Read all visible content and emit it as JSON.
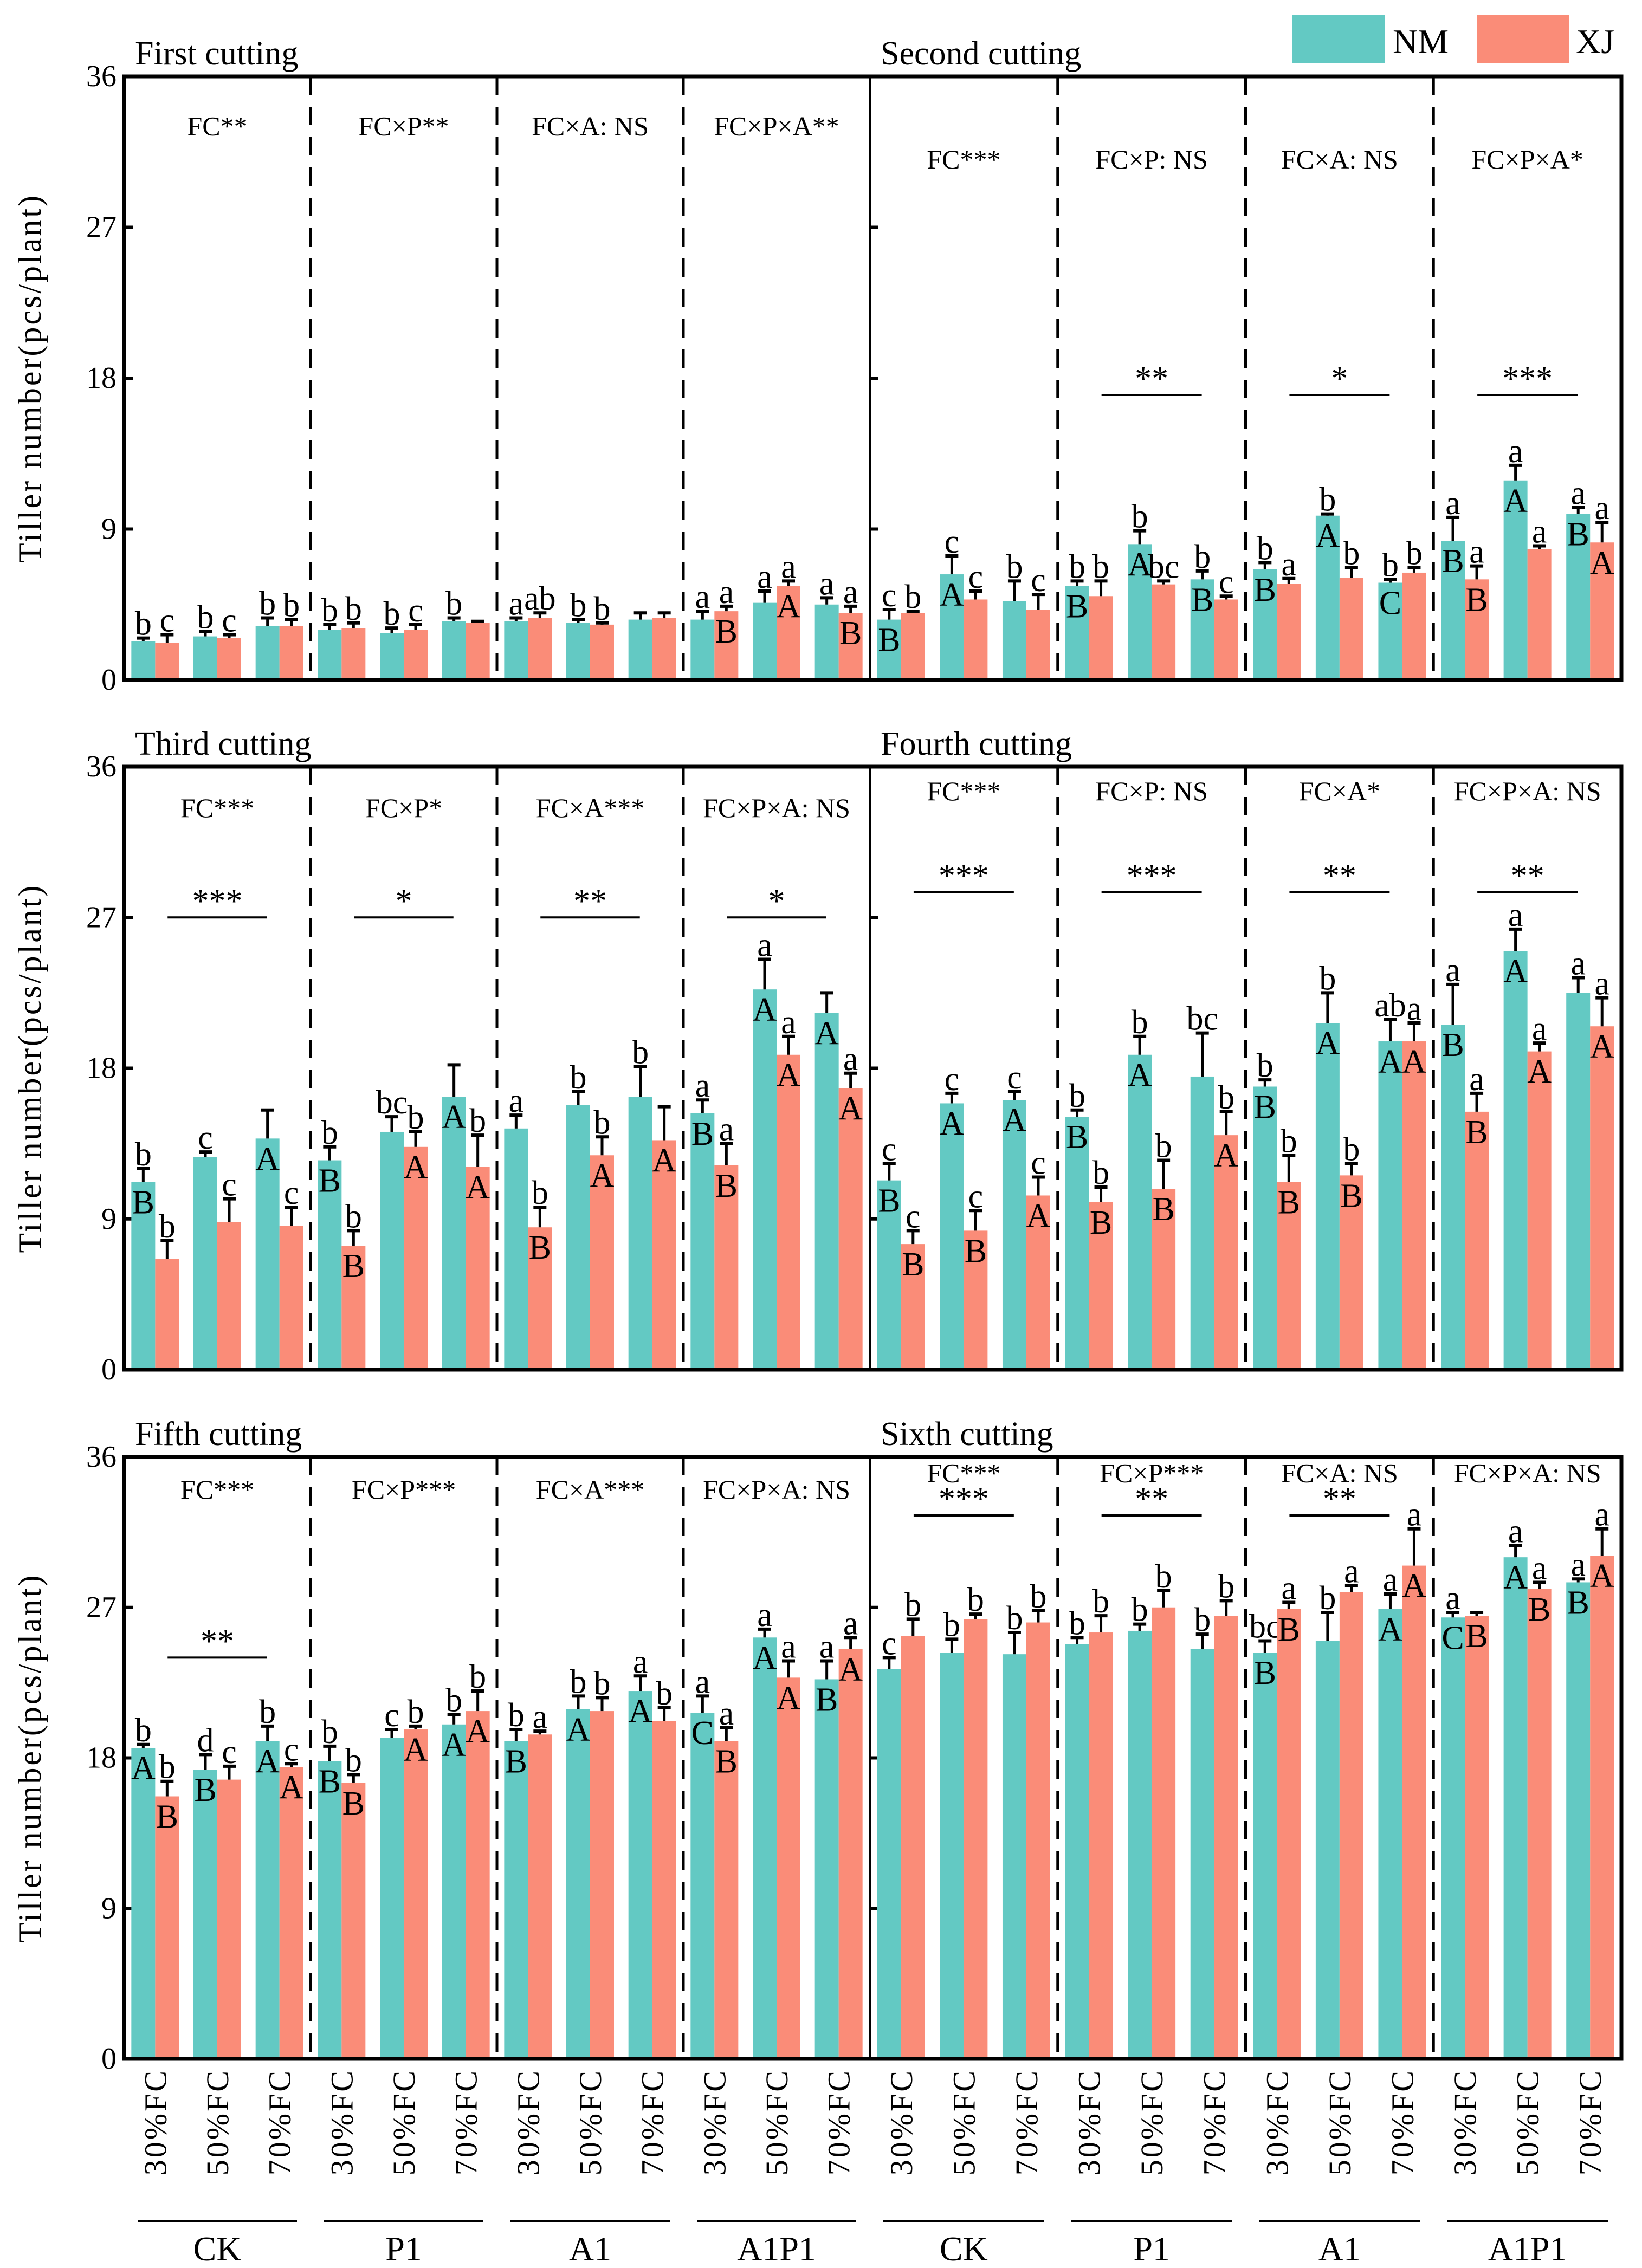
{
  "chart_data": {
    "type": "bar",
    "y_label": "Tiller number(pcs/plant)",
    "ylim": [
      0,
      36
    ],
    "y_ticks": [
      "0",
      "9",
      "18",
      "27",
      "36"
    ],
    "groups": [
      "CK",
      "P1",
      "A1",
      "A1P1"
    ],
    "fc_levels": [
      "30%FC",
      "50%FC",
      "70%FC"
    ],
    "legend": [
      {
        "name": "NM",
        "color": "#63C9C3"
      },
      {
        "name": "XJ",
        "color": "#FA8C78"
      }
    ],
    "legend_position": "top-right",
    "panels": [
      {
        "title": "First cutting",
        "interactions": [
          "FC**",
          "FC×P**",
          "FC×A: NS",
          "FC×P×A**"
        ],
        "brackets": [],
        "nm": [
          2.3,
          2.6,
          3.2,
          3.0,
          2.8,
          3.5,
          3.5,
          3.4,
          3.6,
          3.6,
          4.6,
          4.5
        ],
        "xj": [
          2.2,
          2.5,
          3.2,
          3.1,
          3.0,
          3.4,
          3.7,
          3.3,
          3.7,
          4.1,
          5.6,
          4.0
        ],
        "nm_err": [
          0.2,
          0.3,
          0.5,
          0.3,
          0.3,
          0.2,
          0.2,
          0.2,
          0.4,
          0.5,
          0.7,
          0.4
        ],
        "xj_err": [
          0.5,
          0.2,
          0.4,
          0.3,
          0.3,
          0.1,
          0.3,
          0.1,
          0.3,
          0.3,
          0.3,
          0.4
        ],
        "nm_lower": [
          "b",
          "b",
          "b",
          "b",
          "b",
          "b",
          "a",
          "b",
          "",
          "a",
          "a",
          "a"
        ],
        "xj_lower": [
          "c",
          "c",
          "b",
          "b",
          "c",
          "",
          "ab",
          "b",
          "",
          "a",
          "a",
          "a"
        ],
        "nm_upper": [
          "",
          "",
          "",
          "",
          "",
          "",
          "",
          "",
          "",
          "",
          "",
          ""
        ],
        "xj_upper": [
          "",
          "",
          "",
          "",
          "",
          "",
          "",
          "",
          "",
          "B",
          "A",
          "B"
        ]
      },
      {
        "title": "Second cutting",
        "interactions": [
          "FC***",
          "FC×P: NS",
          "FC×A: NS",
          "FC×P×A*"
        ],
        "brackets": [
          {
            "section": 1,
            "stars": "**"
          },
          {
            "section": 2,
            "stars": "*"
          },
          {
            "section": 3,
            "stars": "***"
          }
        ],
        "nm": [
          3.6,
          6.3,
          4.7,
          5.6,
          8.1,
          6.0,
          6.6,
          9.8,
          5.8,
          8.3,
          11.9,
          9.9
        ],
        "xj": [
          4.0,
          4.8,
          4.2,
          5.0,
          5.7,
          4.8,
          5.75,
          6.1,
          6.4,
          6.0,
          7.8,
          8.2
        ],
        "nm_err": [
          0.6,
          1.1,
          1.2,
          0.3,
          0.8,
          0.5,
          0.4,
          0.1,
          0.2,
          1.4,
          0.9,
          0.4
        ],
        "xj_err": [
          0.1,
          0.5,
          0.9,
          0.9,
          0.2,
          0.2,
          0.3,
          0.6,
          0.3,
          0.8,
          0.2,
          1.2
        ],
        "nm_lower": [
          "c",
          "c",
          "b",
          "b",
          "b",
          "b",
          "b",
          "b",
          "b",
          "a",
          "a",
          "a"
        ],
        "xj_lower": [
          "b",
          "c",
          "c",
          "b",
          "bc",
          "c",
          "a",
          "b",
          "b",
          "a",
          "a",
          "a"
        ],
        "nm_upper": [
          "B",
          "A",
          "",
          "B",
          "A",
          "B",
          "B",
          "A",
          "C",
          "B",
          "A",
          "B"
        ],
        "xj_upper": [
          "",
          "",
          "",
          "",
          "",
          "",
          "",
          "",
          "",
          "B",
          "",
          "A"
        ]
      },
      {
        "title": "Third cutting",
        "interactions": [
          "FC***",
          "FC×P*",
          "FC×A***",
          "FC×P×A: NS"
        ],
        "brackets": [
          {
            "section": 0,
            "stars": "***"
          },
          {
            "section": 1,
            "stars": "*"
          },
          {
            "section": 2,
            "stars": "**"
          },
          {
            "section": 3,
            "stars": "*"
          }
        ],
        "nm": [
          11.2,
          12.7,
          13.8,
          12.5,
          14.2,
          16.3,
          14.4,
          15.8,
          16.3,
          15.3,
          22.7,
          21.3
        ],
        "xj": [
          6.6,
          8.8,
          8.6,
          7.4,
          13.3,
          12.1,
          8.5,
          12.8,
          13.7,
          12.2,
          18.8,
          16.8
        ],
        "nm_err": [
          0.8,
          0.3,
          1.7,
          0.8,
          0.9,
          1.9,
          0.8,
          0.8,
          1.8,
          0.8,
          1.8,
          1.2
        ],
        "xj_err": [
          1.1,
          1.4,
          1.1,
          0.9,
          0.9,
          1.9,
          1.2,
          1.1,
          2.0,
          1.3,
          1.1,
          0.9
        ],
        "nm_lower": [
          "b",
          "c",
          "",
          "b",
          "bc",
          "",
          "a",
          "b",
          "b",
          "a",
          "a",
          ""
        ],
        "xj_lower": [
          "b",
          "c",
          "c",
          "b",
          "b",
          "b",
          "b",
          "b",
          "",
          "a",
          "a",
          "a"
        ],
        "nm_upper": [
          "B",
          "",
          "A",
          "B",
          "",
          "A",
          "",
          "",
          "",
          "B",
          "A",
          "A"
        ],
        "xj_upper": [
          "",
          "",
          "",
          "B",
          "A",
          "A",
          "B",
          "A",
          "A",
          "B",
          "A",
          "A"
        ]
      },
      {
        "title": "Fourth cutting",
        "interactions": [
          "FC***",
          "FC×P: NS",
          "FC×A*",
          "FC×P×A: NS"
        ],
        "brackets": [
          {
            "section": 0,
            "stars": "***"
          },
          {
            "section": 1,
            "stars": "***"
          },
          {
            "section": 2,
            "stars": "**"
          },
          {
            "section": 3,
            "stars": "**"
          }
        ],
        "nm": [
          11.3,
          15.9,
          16.1,
          15.1,
          18.8,
          17.5,
          16.9,
          20.7,
          19.6,
          20.6,
          25.0,
          22.5
        ],
        "xj": [
          7.5,
          8.3,
          10.4,
          10.0,
          10.8,
          14.0,
          11.2,
          11.6,
          19.6,
          15.4,
          19.0,
          20.5
        ],
        "nm_err": [
          1.0,
          0.6,
          0.5,
          0.4,
          1.1,
          2.6,
          0.4,
          1.8,
          1.3,
          2.4,
          1.3,
          0.9
        ],
        "xj_err": [
          0.8,
          1.2,
          1.1,
          0.9,
          1.7,
          1.4,
          1.6,
          0.7,
          1.1,
          1.1,
          0.5,
          1.7
        ],
        "nm_lower": [
          "c",
          "c",
          "c",
          "b",
          "b",
          "bc",
          "b",
          "b",
          "ab",
          "a",
          "a",
          "a"
        ],
        "xj_lower": [
          "c",
          "c",
          "c",
          "b",
          "b",
          "b",
          "b",
          "b",
          "a",
          "a",
          "a",
          "a"
        ],
        "nm_upper": [
          "B",
          "A",
          "A",
          "B",
          "A",
          "",
          "B",
          "A",
          "A",
          "B",
          "A",
          ""
        ],
        "xj_upper": [
          "B",
          "B",
          "A",
          "B",
          "B",
          "A",
          "B",
          "B",
          "A",
          "B",
          "A",
          "A"
        ]
      },
      {
        "title": "Fifth cutting",
        "interactions": [
          "FC***",
          "FC×P***",
          "FC×A***",
          "FC×P×A: NS"
        ],
        "brackets": [
          {
            "section": 0,
            "stars": "**"
          }
        ],
        "nm": [
          18.6,
          17.3,
          19.0,
          17.8,
          19.2,
          20.0,
          19.0,
          20.9,
          22.0,
          20.7,
          25.2,
          22.7
        ],
        "xj": [
          15.7,
          16.7,
          17.45,
          16.5,
          19.7,
          20.8,
          19.4,
          20.8,
          20.2,
          19.0,
          22.8,
          24.5
        ],
        "nm_err": [
          0.2,
          0.9,
          0.9,
          0.9,
          0.5,
          0.6,
          0.7,
          0.8,
          0.9,
          1.0,
          0.5,
          1.1
        ],
        "xj_err": [
          0.9,
          0.8,
          0.2,
          0.5,
          0.2,
          1.2,
          0.2,
          0.8,
          0.8,
          0.8,
          1.0,
          0.7
        ],
        "nm_lower": [
          "b",
          "d",
          "b",
          "b",
          "c",
          "b",
          "b",
          "b",
          "a",
          "a",
          "a",
          "a"
        ],
        "xj_lower": [
          "b",
          "c",
          "c",
          "b",
          "b",
          "b",
          "a",
          "b",
          "b",
          "a",
          "a",
          "a"
        ],
        "nm_upper": [
          "A",
          "B",
          "A",
          "B",
          "",
          "A",
          "B",
          "A",
          "A",
          "C",
          "A",
          "B"
        ],
        "xj_upper": [
          "B",
          "",
          "A",
          "B",
          "A",
          "A",
          "",
          "",
          "",
          "B",
          "A",
          "A"
        ]
      },
      {
        "title": "Sixth cutting",
        "interactions": [
          "FC***",
          "FC×P***",
          "FC×A: NS",
          "FC×P×A: NS"
        ],
        "brackets": [
          {
            "section": 0,
            "stars": "***"
          },
          {
            "section": 1,
            "stars": "**"
          },
          {
            "section": 2,
            "stars": "**"
          }
        ],
        "nm": [
          23.3,
          24.3,
          24.2,
          24.8,
          25.6,
          24.5,
          24.3,
          25.0,
          26.9,
          26.4,
          30.0,
          28.5
        ],
        "xj": [
          25.3,
          26.3,
          26.1,
          25.5,
          27.0,
          26.5,
          26.9,
          27.9,
          29.5,
          26.5,
          28.1,
          30.1
        ],
        "nm_err": [
          0.7,
          0.8,
          1.3,
          0.4,
          0.4,
          0.9,
          0.7,
          1.7,
          0.9,
          0.3,
          0.7,
          0.2
        ],
        "xj_err": [
          1.0,
          0.3,
          0.7,
          1.0,
          1.0,
          0.9,
          0.4,
          0.4,
          2.2,
          0.2,
          0.4,
          1.6
        ],
        "nm_lower": [
          "c",
          "b",
          "b",
          "b",
          "b",
          "b",
          "bc",
          "b",
          "a",
          "a",
          "a",
          "a"
        ],
        "xj_lower": [
          "b",
          "b",
          "b",
          "b",
          "b",
          "b",
          "a",
          "a",
          "a",
          "",
          "a",
          "a"
        ],
        "nm_upper": [
          "",
          "",
          "",
          "",
          "",
          "",
          "B",
          "",
          "A",
          "C",
          "A",
          "B"
        ],
        "xj_upper": [
          "",
          "",
          "",
          "",
          "",
          "",
          "B",
          "",
          "A",
          "B",
          "B",
          "A"
        ]
      }
    ]
  }
}
